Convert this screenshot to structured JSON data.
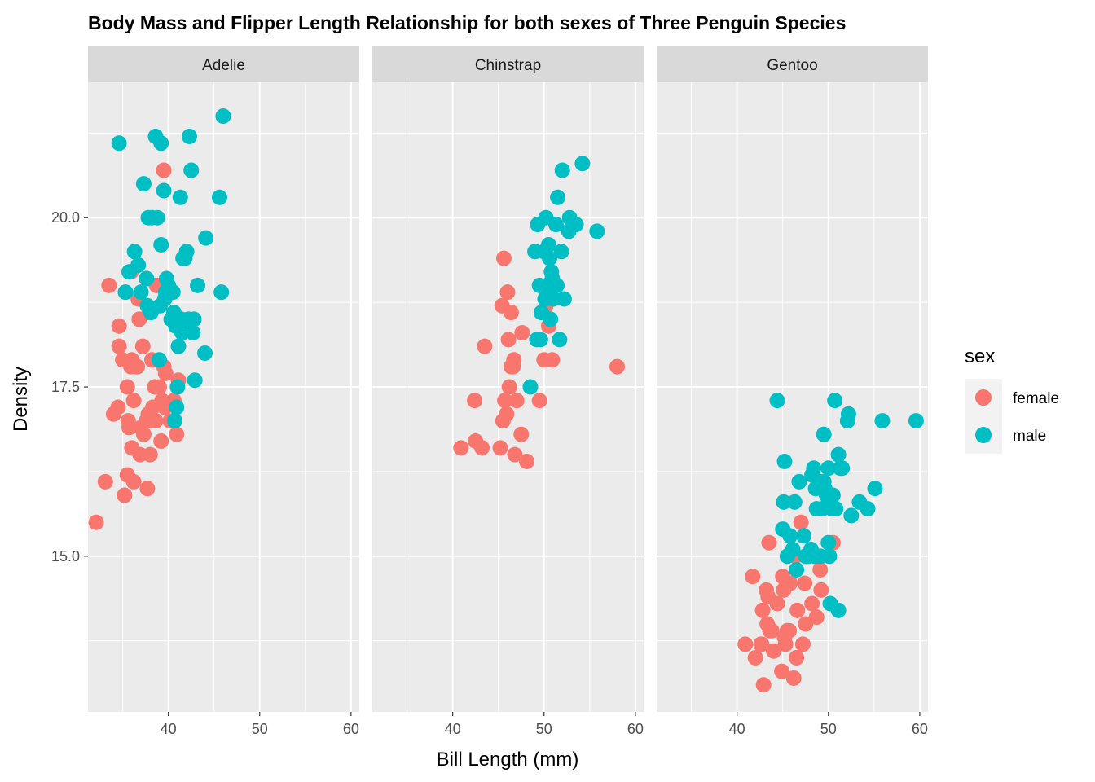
{
  "chart_data": {
    "type": "scatter",
    "title": "Body Mass and Flipper Length Relationship for both sexes of Three Penguin Species",
    "xlabel": "Bill Length (mm)",
    "ylabel": "Density",
    "xlim": [
      31.2,
      60.9
    ],
    "ylim": [
      12.7,
      22.0
    ],
    "x_ticks": [
      40,
      50,
      60
    ],
    "y_ticks": [
      15.0,
      17.5,
      20.0
    ],
    "y_tick_labels": [
      "15.0",
      "17.5",
      "20.0"
    ],
    "grid": true,
    "legend": {
      "title": "sex",
      "position": "right",
      "entries": [
        {
          "label": "female",
          "color": "#F8766D"
        },
        {
          "label": "male",
          "color": "#00BFC4"
        }
      ]
    },
    "panels": [
      {
        "name": "Adelie",
        "series": [
          {
            "name": "female",
            "color": "#F8766D",
            "points": [
              [
                32.1,
                15.5
              ],
              [
                33.1,
                16.1
              ],
              [
                33.5,
                19.0
              ],
              [
                34.0,
                17.1
              ],
              [
                34.5,
                17.2
              ],
              [
                34.6,
                18.4
              ],
              [
                34.6,
                18.1
              ],
              [
                35.0,
                17.9
              ],
              [
                35.2,
                15.9
              ],
              [
                35.5,
                16.2
              ],
              [
                35.5,
                17.5
              ],
              [
                35.6,
                17.0
              ],
              [
                35.7,
                16.9
              ],
              [
                35.9,
                19.2
              ],
              [
                35.9,
                17.8
              ],
              [
                36.0,
                17.9
              ],
              [
                36.0,
                16.6
              ],
              [
                36.2,
                17.3
              ],
              [
                36.2,
                16.1
              ],
              [
                36.5,
                17.8
              ],
              [
                36.6,
                17.8
              ],
              [
                36.7,
                18.8
              ],
              [
                36.8,
                18.5
              ],
              [
                36.9,
                16.5
              ],
              [
                37.0,
                16.9
              ],
              [
                37.2,
                18.1
              ],
              [
                37.3,
                16.8
              ],
              [
                37.6,
                17.0
              ],
              [
                37.7,
                16.0
              ],
              [
                37.8,
                17.1
              ],
              [
                37.9,
                18.6
              ],
              [
                38.0,
                16.5
              ],
              [
                38.1,
                17.0
              ],
              [
                38.2,
                17.9
              ],
              [
                38.3,
                17.2
              ],
              [
                38.5,
                17.5
              ],
              [
                38.6,
                17.0
              ],
              [
                38.7,
                19.0
              ],
              [
                39.0,
                17.5
              ],
              [
                39.2,
                16.7
              ],
              [
                39.3,
                17.3
              ],
              [
                39.5,
                17.8
              ],
              [
                39.5,
                20.7
              ],
              [
                39.6,
                17.2
              ],
              [
                39.7,
                17.7
              ],
              [
                40.2,
                17.0
              ],
              [
                40.6,
                17.3
              ],
              [
                41.1,
                17.6
              ],
              [
                40.9,
                16.8
              ]
            ]
          },
          {
            "name": "male",
            "color": "#00BFC4",
            "points": [
              [
                34.6,
                21.1
              ],
              [
                35.3,
                18.9
              ],
              [
                35.7,
                19.2
              ],
              [
                36.3,
                19.5
              ],
              [
                36.7,
                19.3
              ],
              [
                37.0,
                18.9
              ],
              [
                37.3,
                20.5
              ],
              [
                37.6,
                19.1
              ],
              [
                37.7,
                18.7
              ],
              [
                37.8,
                20.0
              ],
              [
                38.1,
                18.6
              ],
              [
                38.2,
                20.0
              ],
              [
                38.6,
                21.2
              ],
              [
                38.8,
                20.0
              ],
              [
                39.0,
                17.9
              ],
              [
                39.1,
                18.7
              ],
              [
                39.2,
                19.6
              ],
              [
                39.2,
                21.1
              ],
              [
                39.5,
                20.4
              ],
              [
                39.6,
                18.8
              ],
              [
                39.7,
                18.9
              ],
              [
                39.8,
                19.1
              ],
              [
                40.1,
                18.9
              ],
              [
                40.3,
                18.5
              ],
              [
                40.5,
                18.9
              ],
              [
                40.6,
                18.6
              ],
              [
                40.8,
                18.4
              ],
              [
                40.9,
                17.2
              ],
              [
                41.0,
                17.5
              ],
              [
                41.1,
                18.1
              ],
              [
                41.3,
                20.3
              ],
              [
                41.4,
                18.5
              ],
              [
                41.5,
                18.3
              ],
              [
                41.6,
                19.4
              ],
              [
                41.8,
                19.4
              ],
              [
                42.0,
                19.5
              ],
              [
                42.2,
                18.5
              ],
              [
                42.3,
                21.2
              ],
              [
                42.5,
                20.7
              ],
              [
                42.7,
                18.3
              ],
              [
                42.8,
                18.5
              ],
              [
                42.9,
                17.6
              ],
              [
                43.2,
                19.0
              ],
              [
                44.1,
                19.7
              ],
              [
                44.0,
                18.0
              ],
              [
                45.6,
                20.3
              ],
              [
                45.8,
                18.9
              ],
              [
                46.0,
                21.5
              ],
              [
                40.0,
                19.0
              ],
              [
                40.7,
                17.0
              ]
            ]
          }
        ]
      },
      {
        "name": "Chinstrap",
        "series": [
          {
            "name": "female",
            "color": "#F8766D",
            "points": [
              [
                40.9,
                16.6
              ],
              [
                42.4,
                17.3
              ],
              [
                42.5,
                16.7
              ],
              [
                43.2,
                16.6
              ],
              [
                43.5,
                18.1
              ],
              [
                45.2,
                16.6
              ],
              [
                45.4,
                18.7
              ],
              [
                45.5,
                17.0
              ],
              [
                45.6,
                19.4
              ],
              [
                45.7,
                17.3
              ],
              [
                45.9,
                17.1
              ],
              [
                46.1,
                18.2
              ],
              [
                46.2,
                17.5
              ],
              [
                46.4,
                17.8
              ],
              [
                46.4,
                18.6
              ],
              [
                46.6,
                17.8
              ],
              [
                46.7,
                17.9
              ],
              [
                46.8,
                16.5
              ],
              [
                47.0,
                17.3
              ],
              [
                47.5,
                16.8
              ],
              [
                47.6,
                18.3
              ],
              [
                48.1,
                16.4
              ],
              [
                49.5,
                17.3
              ],
              [
                50.2,
                18.7
              ],
              [
                50.5,
                18.4
              ],
              [
                50.9,
                17.9
              ],
              [
                58.0,
                17.8
              ],
              [
                46.0,
                18.9
              ],
              [
                50.0,
                17.9
              ]
            ]
          },
          {
            "name": "male",
            "color": "#00BFC4",
            "points": [
              [
                48.5,
                17.5
              ],
              [
                49.0,
                19.5
              ],
              [
                49.2,
                18.2
              ],
              [
                49.3,
                19.9
              ],
              [
                49.5,
                19.0
              ],
              [
                49.6,
                18.2
              ],
              [
                49.7,
                18.6
              ],
              [
                50.0,
                19.5
              ],
              [
                50.1,
                18.8
              ],
              [
                50.2,
                20.0
              ],
              [
                50.3,
                19.0
              ],
              [
                50.5,
                19.6
              ],
              [
                50.6,
                19.4
              ],
              [
                50.7,
                18.5
              ],
              [
                50.8,
                19.2
              ],
              [
                51.0,
                18.8
              ],
              [
                51.3,
                19.9
              ],
              [
                51.4,
                19.0
              ],
              [
                51.5,
                20.3
              ],
              [
                51.7,
                18.2
              ],
              [
                51.9,
                19.5
              ],
              [
                52.0,
                20.7
              ],
              [
                52.2,
                18.8
              ],
              [
                52.7,
                19.8
              ],
              [
                52.8,
                20.0
              ],
              [
                53.5,
                19.9
              ],
              [
                54.2,
                20.8
              ],
              [
                55.8,
                19.8
              ],
              [
                50.9,
                19.1
              ]
            ]
          }
        ]
      },
      {
        "name": "Gentoo",
        "series": [
          {
            "name": "female",
            "color": "#F8766D",
            "points": [
              [
                40.9,
                13.7
              ],
              [
                41.7,
                14.7
              ],
              [
                42.0,
                13.5
              ],
              [
                42.6,
                13.7
              ],
              [
                42.7,
                13.7
              ],
              [
                42.8,
                14.2
              ],
              [
                42.9,
                13.1
              ],
              [
                43.2,
                14.5
              ],
              [
                43.3,
                14.0
              ],
              [
                43.4,
                14.4
              ],
              [
                43.5,
                15.2
              ],
              [
                43.6,
                13.9
              ],
              [
                43.8,
                13.9
              ],
              [
                44.0,
                13.6
              ],
              [
                44.4,
                14.3
              ],
              [
                44.9,
                13.3
              ],
              [
                45.1,
                14.5
              ],
              [
                45.2,
                13.8
              ],
              [
                45.3,
                13.7
              ],
              [
                45.4,
                14.6
              ],
              [
                45.5,
                13.9
              ],
              [
                45.7,
                13.9
              ],
              [
                45.8,
                14.6
              ],
              [
                46.2,
                13.2
              ],
              [
                46.4,
                15.0
              ],
              [
                46.5,
                13.5
              ],
              [
                46.6,
                14.2
              ],
              [
                47.2,
                13.7
              ],
              [
                47.4,
                14.6
              ],
              [
                47.5,
                14.0
              ],
              [
                48.2,
                14.3
              ],
              [
                48.7,
                14.1
              ],
              [
                49.1,
                14.8
              ],
              [
                49.2,
                14.5
              ],
              [
                50.5,
                15.2
              ],
              [
                47.0,
                15.5
              ],
              [
                45.0,
                14.7
              ]
            ]
          },
          {
            "name": "male",
            "color": "#00BFC4",
            "points": [
              [
                44.4,
                17.3
              ],
              [
                45.0,
                15.4
              ],
              [
                45.1,
                15.8
              ],
              [
                45.2,
                16.4
              ],
              [
                45.5,
                15.0
              ],
              [
                45.8,
                15.3
              ],
              [
                46.1,
                15.1
              ],
              [
                46.3,
                15.8
              ],
              [
                46.5,
                14.8
              ],
              [
                46.8,
                16.1
              ],
              [
                47.3,
                15.3
              ],
              [
                47.5,
                15.0
              ],
              [
                47.8,
                15.0
              ],
              [
                48.1,
                15.1
              ],
              [
                48.2,
                16.2
              ],
              [
                48.4,
                16.3
              ],
              [
                48.5,
                15.0
              ],
              [
                48.6,
                16.0
              ],
              [
                48.7,
                15.7
              ],
              [
                49.0,
                16.1
              ],
              [
                49.1,
                15.0
              ],
              [
                49.3,
                15.7
              ],
              [
                49.5,
                16.1
              ],
              [
                49.6,
                16.0
              ],
              [
                49.8,
                15.9
              ],
              [
                50.0,
                16.3
              ],
              [
                50.0,
                15.2
              ],
              [
                50.1,
                15.0
              ],
              [
                50.4,
                15.7
              ],
              [
                50.5,
                15.9
              ],
              [
                50.7,
                17.3
              ],
              [
                50.8,
                15.7
              ],
              [
                51.1,
                16.5
              ],
              [
                51.3,
                16.3
              ],
              [
                51.5,
                16.3
              ],
              [
                52.1,
                17.0
              ],
              [
                52.2,
                17.1
              ],
              [
                52.5,
                15.6
              ],
              [
                53.4,
                15.8
              ],
              [
                54.3,
                15.7
              ],
              [
                55.1,
                16.0
              ],
              [
                55.9,
                17.0
              ],
              [
                59.6,
                17.0
              ],
              [
                49.5,
                16.8
              ],
              [
                51.1,
                14.2
              ],
              [
                50.2,
                14.3
              ]
            ]
          }
        ]
      }
    ]
  }
}
